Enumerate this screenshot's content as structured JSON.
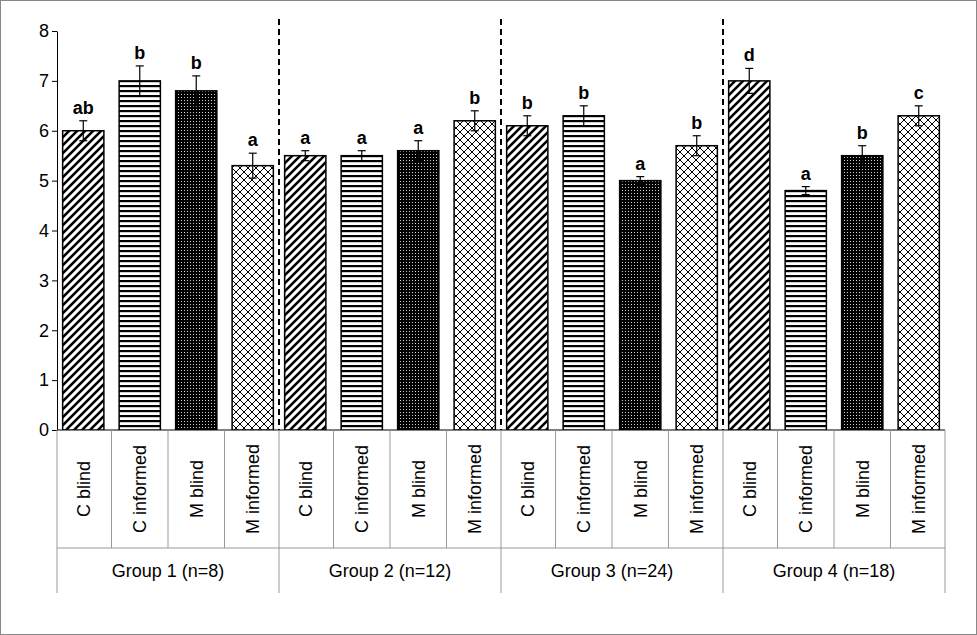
{
  "chart_data": {
    "type": "bar",
    "categories": [
      "Group 1 (n=8)",
      "Group 2 (n=12)",
      "Group 3 (n=24)",
      "Group 4 (n=18)"
    ],
    "series": [
      {
        "name": "C blind",
        "color": "#000000",
        "values": [
          6.0,
          5.5,
          6.1,
          7.0
        ],
        "errors": [
          0.2,
          0.1,
          0.2,
          0.25
        ],
        "letters": [
          "ab",
          "a",
          "b",
          "d"
        ]
      },
      {
        "name": "C informed",
        "color": "#000000",
        "values": [
          7.0,
          5.5,
          6.3,
          4.8
        ],
        "errors": [
          0.3,
          0.1,
          0.2,
          0.08
        ],
        "letters": [
          "b",
          "a",
          "b",
          "a"
        ]
      },
      {
        "name": "M blind",
        "color": "#000000",
        "values": [
          6.8,
          5.6,
          5.0,
          5.5
        ],
        "errors": [
          0.3,
          0.2,
          0.08,
          0.2
        ],
        "letters": [
          "b",
          "a",
          "a",
          "b"
        ]
      },
      {
        "name": "M informed",
        "color": "#000000",
        "values": [
          5.3,
          6.2,
          5.7,
          6.3
        ],
        "errors": [
          0.25,
          0.2,
          0.2,
          0.2
        ],
        "letters": [
          "a",
          "b",
          "b",
          "c"
        ]
      }
    ],
    "ylim": [
      0,
      8
    ],
    "yticks": [
      0,
      1,
      2,
      3,
      4,
      5,
      6,
      7,
      8
    ],
    "grid": false
  }
}
